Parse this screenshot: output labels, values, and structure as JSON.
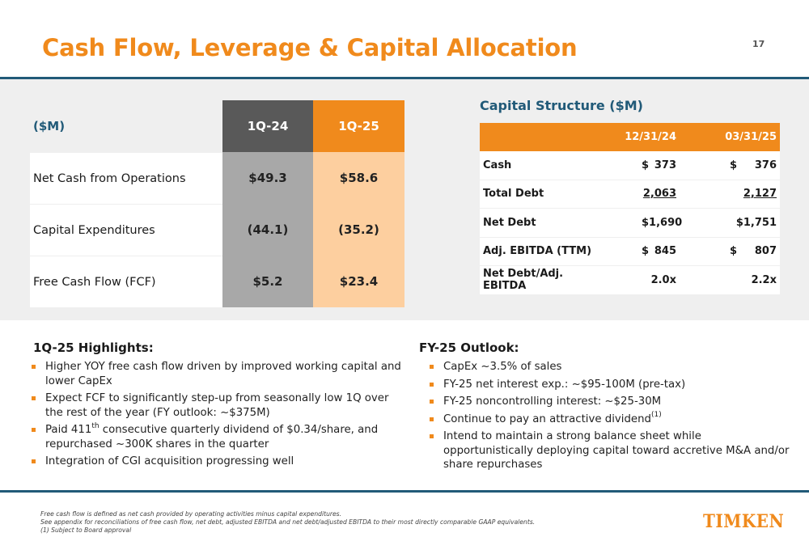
{
  "slide": {
    "title": "Cash Flow, Leverage & Capital Allocation",
    "page_number": "17"
  },
  "cash_flow_table": {
    "unit_label": "($M)",
    "columns": [
      "1Q-24",
      "1Q-25"
    ],
    "rows": [
      {
        "label": "Net Cash from Operations",
        "values": [
          "$49.3",
          "$58.6"
        ]
      },
      {
        "label": "Capital Expenditures",
        "values": [
          "(44.1)",
          "(35.2)"
        ]
      },
      {
        "label": "Free Cash Flow (FCF)",
        "values": [
          "$5.2",
          "$23.4"
        ]
      }
    ]
  },
  "capital_structure": {
    "title": "Capital Structure ($M)",
    "columns": [
      "12/31/24",
      "03/31/25"
    ],
    "rows": [
      {
        "label": "Cash",
        "c1_prefix": "$",
        "c1": "373",
        "c2_prefix": "$",
        "c2": "376"
      },
      {
        "label": "Total Debt",
        "c1_prefix": "",
        "c1": "2,063",
        "c2_prefix": "",
        "c2": "2,127"
      },
      {
        "label": "Net Debt",
        "c1_prefix": "",
        "c1": "$1,690",
        "c2_prefix": "",
        "c2": "$1,751"
      },
      {
        "label": "Adj. EBITDA (TTM)",
        "c1_prefix": "$",
        "c1": "845",
        "c2_prefix": "$",
        "c2": "807"
      },
      {
        "label": "Net Debt/Adj. EBITDA",
        "c1_prefix": "",
        "c1": "2.0x",
        "c2_prefix": "",
        "c2": "2.2x"
      }
    ]
  },
  "highlights": {
    "heading": "1Q-25 Highlights:",
    "b1": "Higher YOY free cash flow driven by improved working capital and lower CapEx",
    "b2": "Expect FCF to significantly step-up from seasonally low 1Q over the rest of the year (FY outlook: ~$375M)",
    "b3_pre": "Paid 411",
    "b3_sup": "th",
    "b3_post": " consecutive quarterly dividend of $0.34/share, and repurchased ~300K shares in the quarter",
    "b4": "Integration of CGI acquisition progressing well"
  },
  "outlook": {
    "heading": "FY-25 Outlook:",
    "b1": "CapEx ~3.5% of sales",
    "b2": "FY-25 net interest exp.: ~$95-100M (pre-tax)",
    "b3": "FY-25 noncontrolling interest: ~$25-30M",
    "b4_pre": "Continue to pay an attractive dividend",
    "b4_sup": "(1)",
    "b5": "Intend to maintain a strong balance sheet while opportunistically deploying capital toward accretive M&A and/or share repurchases"
  },
  "footnotes": {
    "line1": "Free cash flow is defined as net cash provided by operating activities minus capital expenditures.",
    "line2": "See appendix for reconciliations of free cash flow, net debt, adjusted EBITDA and net debt/adjusted EBITDA to their most directly comparable GAAP equivalents.",
    "line3": "(1) Subject to Board approval"
  },
  "brand": {
    "logo_text": "TIMKEN",
    "accent_color": "#f08a1c",
    "navy_color": "#215a78"
  }
}
